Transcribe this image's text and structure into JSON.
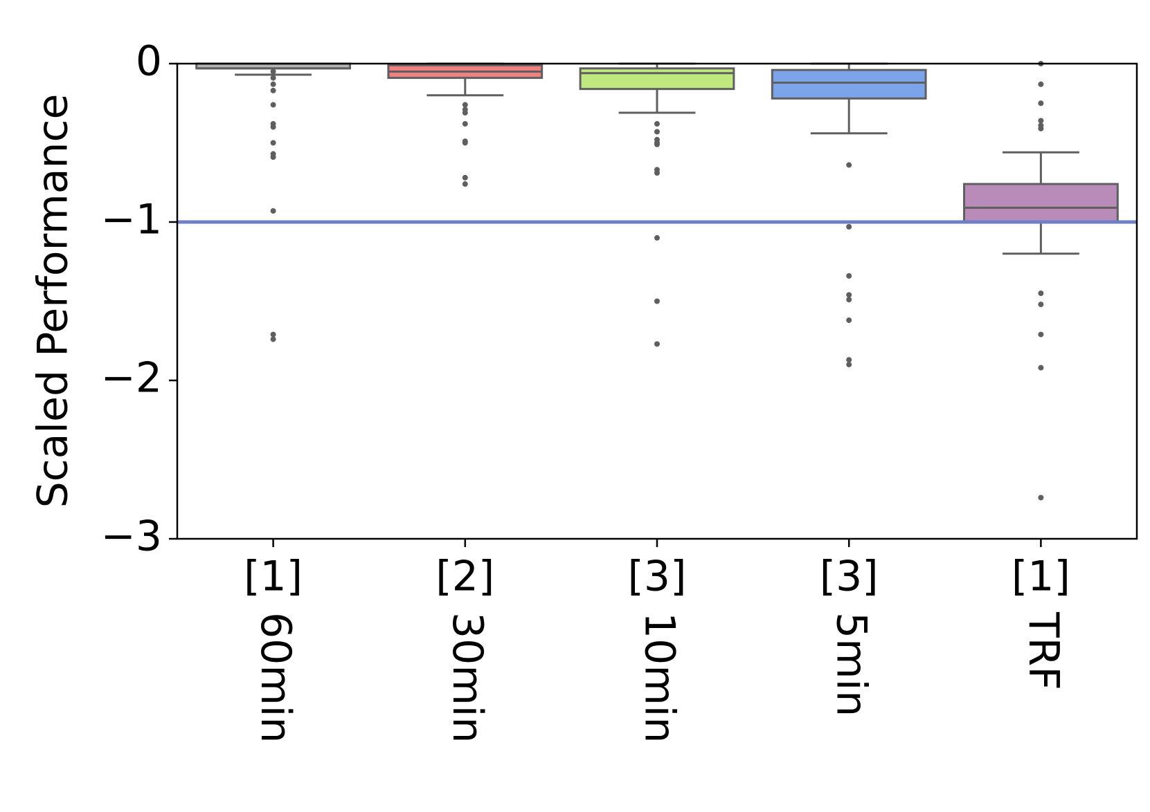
{
  "chart_data": {
    "type": "box",
    "title": "",
    "xlabel": "",
    "ylabel": "Scaled Performance",
    "ylim": [
      -3,
      0
    ],
    "yticks": [
      {
        "value": 0,
        "label": "0"
      },
      {
        "value": -1,
        "label": "−1"
      },
      {
        "value": -2,
        "label": "−2"
      },
      {
        "value": -3,
        "label": "−3"
      }
    ],
    "reference_line": {
      "y": -1,
      "color": "#6f7fc6"
    },
    "grid": false,
    "legend": "none",
    "categories": [
      {
        "line1": "[1]",
        "line2": "60min",
        "color": "#b3b3b3",
        "q1": -0.03,
        "median": -0.03,
        "q3": 0,
        "whisker_low": -0.07,
        "whisker_high": 0,
        "outliers": [
          -0.05,
          -0.09,
          -0.13,
          -0.17,
          -0.26,
          -0.38,
          -0.4,
          -0.5,
          -0.57,
          -0.59,
          -0.93,
          -1.71,
          -1.74
        ]
      },
      {
        "line1": "[2]",
        "line2": "30min",
        "color": "#f08080",
        "q1": -0.09,
        "median": -0.05,
        "q3": -0.01,
        "whisker_low": -0.2,
        "whisker_high": 0,
        "outliers": [
          -0.26,
          -0.29,
          -0.31,
          -0.38,
          -0.49,
          -0.5,
          -0.72,
          -0.76
        ]
      },
      {
        "line1": "[3]",
        "line2": "10min",
        "color": "#bfe97f",
        "q1": -0.16,
        "median": -0.06,
        "q3": -0.03,
        "whisker_low": -0.31,
        "whisker_high": 0,
        "outliers": [
          -0.38,
          -0.43,
          -0.48,
          -0.5,
          -0.51,
          -0.67,
          -0.69,
          -1.1,
          -1.5,
          -1.77
        ]
      },
      {
        "line1": "[3]",
        "line2": "5min",
        "color": "#7ba4ea",
        "q1": -0.22,
        "median": -0.12,
        "q3": -0.04,
        "whisker_low": -0.44,
        "whisker_high": 0,
        "outliers": [
          -0.64,
          -1.03,
          -1.34,
          -1.46,
          -1.49,
          -1.62,
          -1.87,
          -1.9
        ]
      },
      {
        "line1": "[1]",
        "line2": "TRF",
        "color": "#b98bb8",
        "q1": -1,
        "median": -0.91,
        "q3": -0.76,
        "whisker_low": -1.2,
        "whisker_high": -0.56,
        "outliers": [
          0,
          -0.13,
          -0.25,
          -0.36,
          -0.39,
          -0.41,
          -1.45,
          -1.52,
          -1.71,
          -1.92,
          -2.74
        ]
      }
    ]
  }
}
